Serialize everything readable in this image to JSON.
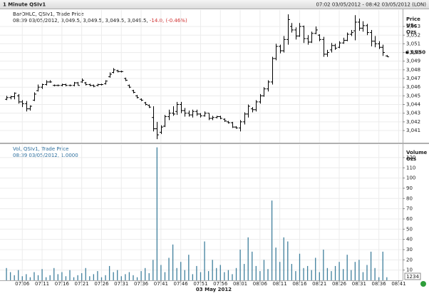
{
  "chart_data": {
    "type": "ohlc",
    "title": "1 Minute QSIv1",
    "range": "07:02 03/05/2012 - 08:42 03/05/2012 (LON)",
    "legend": {
      "name": "BarOHLC, QSIv1, Trade Price",
      "line": "08:39 03/05/2012, 3,049.5, 3,049.5, 3,049.5, 3,049.5,",
      "change": "-14.0, (-0.46%)"
    },
    "ylabel": [
      "Price",
      "USc",
      "Ozs"
    ],
    "color": "#000000",
    "grid": true,
    "xlabel": "03 May 2012",
    "xlim": [
      "07:02",
      "08:42"
    ],
    "xticks": [
      "07:06",
      "07:11",
      "07:16",
      "07:21",
      "07:26",
      "07:31",
      "07:36",
      "07:41",
      "07:46",
      "07:51",
      "07:56",
      "08:01",
      "08:06",
      "08:11",
      "08:16",
      "08:21",
      "08:26",
      "08:31",
      "08:36",
      "08:41"
    ],
    "ylim": [
      3039.6,
      3054.9
    ],
    "yticks": [
      {
        "value": 3041,
        "label": "3,041"
      },
      {
        "value": 3042,
        "label": "3,042"
      },
      {
        "value": 3043,
        "label": "3,043"
      },
      {
        "value": 3044,
        "label": "3,044"
      },
      {
        "value": 3045,
        "label": "3,045"
      },
      {
        "value": 3046,
        "label": "3,046"
      },
      {
        "value": 3047,
        "label": "3,047"
      },
      {
        "value": 3048,
        "label": "3,048"
      },
      {
        "value": 3049,
        "label": "3,049"
      },
      {
        "value": 3050,
        "label": "3,050"
      },
      {
        "value": 3051,
        "label": "3,051"
      },
      {
        "value": 3052,
        "label": "3,052"
      },
      {
        "value": 3053,
        "label": "3,053"
      }
    ],
    "last_price": {
      "value": 3050,
      "label": "3,050"
    },
    "x": [
      "07:02",
      "07:03",
      "07:04",
      "07:05",
      "07:06",
      "07:07",
      "07:08",
      "07:09",
      "07:10",
      "07:11",
      "07:12",
      "07:13",
      "07:14",
      "07:15",
      "07:16",
      "07:17",
      "07:18",
      "07:19",
      "07:20",
      "07:21",
      "07:22",
      "07:23",
      "07:24",
      "07:25",
      "07:26",
      "07:27",
      "07:28",
      "07:29",
      "07:30",
      "07:31",
      "07:32",
      "07:33",
      "07:34",
      "07:35",
      "07:36",
      "07:37",
      "07:38",
      "07:39",
      "07:40",
      "07:41",
      "07:42",
      "07:43",
      "07:44",
      "07:45",
      "07:46",
      "07:47",
      "07:48",
      "07:49",
      "07:50",
      "07:51",
      "07:52",
      "07:53",
      "07:54",
      "07:55",
      "07:56",
      "07:57",
      "07:58",
      "07:59",
      "08:00",
      "08:01",
      "08:02",
      "08:03",
      "08:04",
      "08:05",
      "08:06",
      "08:07",
      "08:08",
      "08:09",
      "08:10",
      "08:11",
      "08:12",
      "08:13",
      "08:14",
      "08:15",
      "08:16",
      "08:17",
      "08:18",
      "08:19",
      "08:20",
      "08:21",
      "08:22",
      "08:23",
      "08:24",
      "08:25",
      "08:26",
      "08:27",
      "08:28",
      "08:29",
      "08:30",
      "08:31",
      "08:32",
      "08:33",
      "08:34",
      "08:35",
      "08:36",
      "08:37",
      "08:38"
    ],
    "ohlc": [
      [
        3044.6,
        3045.0,
        3044.5,
        3044.8
      ],
      [
        3044.8,
        3045.0,
        3044.6,
        3044.9
      ],
      [
        3044.9,
        3045.4,
        3044.6,
        3045.3
      ],
      [
        3045.0,
        3045.2,
        3044.1,
        3044.3
      ],
      [
        3044.3,
        3044.5,
        3043.7,
        3044.1
      ],
      [
        3044.1,
        3044.4,
        3043.2,
        3043.5
      ],
      [
        3043.5,
        3043.9,
        3043.3,
        3043.8
      ],
      [
        3044.5,
        3045.4,
        3044.4,
        3045.2
      ],
      [
        3045.6,
        3046.3,
        3045.5,
        3046.0
      ],
      [
        3046.0,
        3046.4,
        3045.8,
        3046.3
      ],
      [
        3046.3,
        3046.8,
        3046.2,
        3046.6
      ],
      [
        3046.6,
        3046.8,
        3046.5,
        3046.6
      ],
      [
        3046.2,
        3046.3,
        3046.1,
        3046.2
      ],
      [
        3046.2,
        3046.3,
        3046.1,
        3046.2
      ],
      [
        3046.2,
        3046.4,
        3046.1,
        3046.3
      ],
      [
        3046.3,
        3046.4,
        3046.1,
        3046.2
      ],
      [
        3046.2,
        3046.3,
        3046.1,
        3046.2
      ],
      [
        3046.2,
        3046.6,
        3046.1,
        3046.5
      ],
      [
        3046.5,
        3046.6,
        3046.2,
        3046.2
      ],
      [
        3046.6,
        3047.0,
        3046.5,
        3046.8
      ],
      [
        3046.5,
        3046.6,
        3046.2,
        3046.3
      ],
      [
        3046.3,
        3046.4,
        3046.1,
        3046.2
      ],
      [
        3046.2,
        3046.3,
        3046.0,
        3046.1
      ],
      [
        3046.2,
        3046.4,
        3046.1,
        3046.3
      ],
      [
        3046.3,
        3046.4,
        3046.2,
        3046.3
      ],
      [
        3046.4,
        3046.8,
        3046.3,
        3046.7
      ],
      [
        3047.2,
        3047.7,
        3047.1,
        3047.5
      ],
      [
        3047.7,
        3048.2,
        3047.6,
        3048.0
      ],
      [
        3047.9,
        3048.0,
        3047.7,
        3047.8
      ],
      [
        3047.8,
        3047.9,
        3047.7,
        3047.8
      ],
      [
        3047.0,
        3047.1,
        3046.7,
        3046.8
      ],
      [
        3046.2,
        3046.3,
        3045.9,
        3046.0
      ],
      [
        3045.6,
        3045.7,
        3045.3,
        3045.4
      ],
      [
        3045.0,
        3045.1,
        3044.7,
        3044.8
      ],
      [
        3044.6,
        3044.7,
        3044.4,
        3044.5
      ],
      [
        3044.2,
        3044.3,
        3043.9,
        3044.0
      ],
      [
        3043.9,
        3044.0,
        3043.6,
        3043.7
      ],
      [
        3042.5,
        3043.8,
        3040.9,
        3041.2
      ],
      [
        3041.2,
        3042.0,
        3040.0,
        3040.5
      ],
      [
        3040.8,
        3041.6,
        3040.6,
        3041.4
      ],
      [
        3041.5,
        3042.8,
        3041.4,
        3042.6
      ],
      [
        3042.6,
        3043.4,
        3042.2,
        3043.0
      ],
      [
        3043.0,
        3043.8,
        3042.7,
        3042.9
      ],
      [
        3043.2,
        3044.3,
        3042.8,
        3044.0
      ],
      [
        3044.0,
        3044.3,
        3043.0,
        3043.3
      ],
      [
        3043.3,
        3043.6,
        3042.6,
        3043.0
      ],
      [
        3043.0,
        3043.3,
        3042.6,
        3042.8
      ],
      [
        3042.8,
        3043.4,
        3042.5,
        3043.2
      ],
      [
        3043.2,
        3043.4,
        3042.7,
        3042.9
      ],
      [
        3042.9,
        3043.0,
        3042.5,
        3042.7
      ],
      [
        3042.7,
        3043.2,
        3042.6,
        3043.0
      ],
      [
        3043.0,
        3043.0,
        3042.2,
        3042.4
      ],
      [
        3042.4,
        3042.7,
        3042.2,
        3042.5
      ],
      [
        3042.5,
        3042.7,
        3042.4,
        3042.6
      ],
      [
        3042.6,
        3042.7,
        3042.3,
        3042.4
      ],
      [
        3042.3,
        3042.4,
        3042.0,
        3042.1
      ],
      [
        3042.0,
        3042.1,
        3041.8,
        3041.9
      ],
      [
        3041.9,
        3042.0,
        3041.3,
        3041.4
      ],
      [
        3041.4,
        3041.5,
        3041.2,
        3041.3
      ],
      [
        3041.3,
        3042.2,
        3040.9,
        3042.0
      ],
      [
        3042.0,
        3043.1,
        3041.7,
        3042.9
      ],
      [
        3042.9,
        3044.0,
        3042.5,
        3043.8
      ],
      [
        3043.5,
        3043.7,
        3043.1,
        3043.4
      ],
      [
        3043.4,
        3044.5,
        3043.2,
        3044.3
      ],
      [
        3044.3,
        3045.2,
        3044.1,
        3045.0
      ],
      [
        3045.0,
        3046.0,
        3044.9,
        3045.8
      ],
      [
        3045.8,
        3046.8,
        3045.5,
        3046.6
      ],
      [
        3046.6,
        3049.5,
        3046.3,
        3049.3
      ],
      [
        3049.3,
        3051.0,
        3049.1,
        3050.7
      ],
      [
        3050.7,
        3050.9,
        3049.9,
        3050.2
      ],
      [
        3050.2,
        3051.9,
        3050.0,
        3051.5
      ],
      [
        3051.5,
        3054.4,
        3050.9,
        3053.8
      ],
      [
        3053.0,
        3053.4,
        3052.3,
        3052.6
      ],
      [
        3052.6,
        3052.9,
        3051.5,
        3051.9
      ],
      [
        3051.9,
        3053.4,
        3051.8,
        3053.0
      ],
      [
        3053.0,
        3053.1,
        3051.1,
        3051.6
      ],
      [
        3051.6,
        3052.0,
        3050.9,
        3051.2
      ],
      [
        3051.2,
        3052.4,
        3051.1,
        3052.2
      ],
      [
        3052.2,
        3053.0,
        3052.1,
        3052.6
      ],
      [
        3052.0,
        3052.1,
        3051.3,
        3051.5
      ],
      [
        3051.5,
        3051.8,
        3049.5,
        3049.8
      ],
      [
        3049.8,
        3050.3,
        3049.5,
        3050.0
      ],
      [
        3050.3,
        3051.1,
        3050.0,
        3050.8
      ],
      [
        3050.8,
        3051.0,
        3050.3,
        3050.5
      ],
      [
        3050.6,
        3051.3,
        3050.5,
        3051.1
      ],
      [
        3051.1,
        3051.7,
        3051.0,
        3051.4
      ],
      [
        3051.4,
        3052.3,
        3051.3,
        3052.1
      ],
      [
        3052.1,
        3052.6,
        3051.9,
        3052.3
      ],
      [
        3052.5,
        3054.3,
        3051.4,
        3053.5
      ],
      [
        3053.5,
        3053.9,
        3052.5,
        3052.8
      ],
      [
        3052.8,
        3053.6,
        3052.4,
        3053.1
      ],
      [
        3053.1,
        3053.3,
        3052.0,
        3052.3
      ],
      [
        3052.3,
        3052.6,
        3050.7,
        3051.3
      ],
      [
        3051.3,
        3051.9,
        3050.6,
        3051.0
      ],
      [
        3051.0,
        3051.3,
        3050.4,
        3050.6
      ],
      [
        3050.6,
        3050.9,
        3049.6,
        3050.0
      ],
      [
        3049.6,
        3049.7,
        3049.5,
        3049.5
      ]
    ],
    "volume": {
      "type": "bar",
      "title": "Vol, QSIv1, Trade Price",
      "subtitle": "08:39 03/05/2012, 1.0000",
      "ylabel": [
        "Volume",
        "Ozs"
      ],
      "color": "#3f7f9c",
      "ylim": [
        0,
        133.2
      ],
      "yticks": [
        10,
        20,
        30,
        40,
        50,
        60,
        70,
        80,
        90,
        100,
        110,
        120
      ],
      "values": [
        12,
        8,
        5,
        10,
        4,
        6,
        3,
        8,
        5,
        11,
        3,
        5,
        12,
        6,
        8,
        4,
        10,
        3,
        5,
        7,
        12,
        4,
        6,
        9,
        3,
        5,
        14,
        8,
        10,
        4,
        6,
        8,
        5,
        3,
        9,
        12,
        7,
        20,
        130,
        15,
        8,
        22,
        35,
        12,
        18,
        10,
        25,
        6,
        14,
        8,
        38,
        9,
        20,
        12,
        15,
        8,
        10,
        6,
        12,
        30,
        16,
        42,
        28,
        14,
        9,
        20,
        11,
        78,
        32,
        18,
        42,
        38,
        16,
        9,
        26,
        12,
        14,
        10,
        22,
        8,
        30,
        12,
        9,
        14,
        18,
        11,
        25,
        10,
        18,
        20,
        8,
        15,
        28,
        12,
        3,
        28,
        3
      ]
    },
    "counter": "1234"
  }
}
